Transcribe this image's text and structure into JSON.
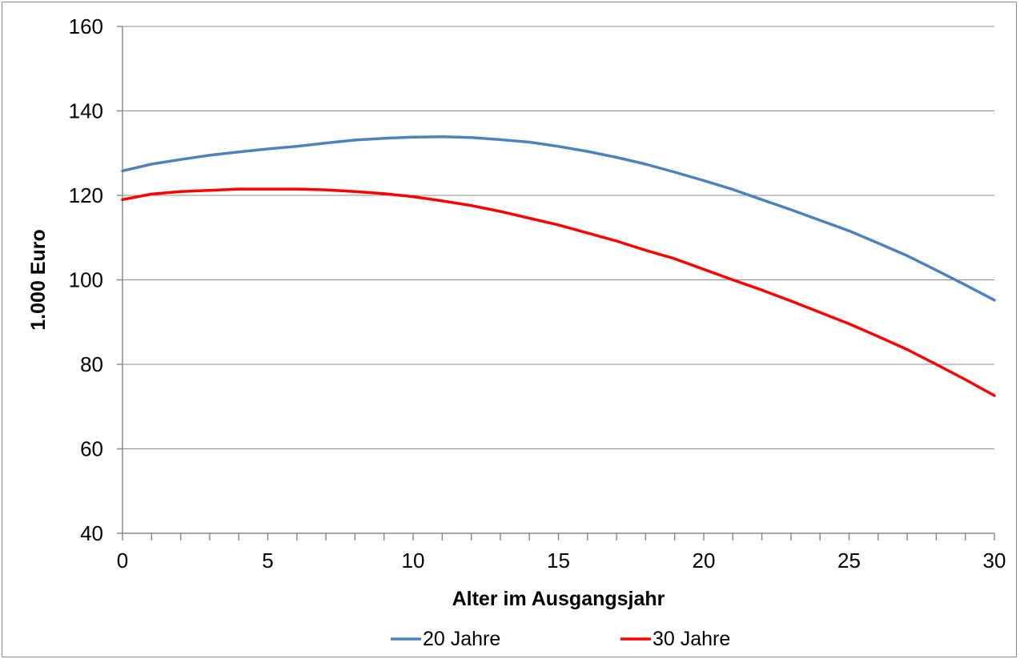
{
  "chart_data": {
    "type": "line",
    "title": "",
    "xlabel": "Alter im Ausgangsjahr",
    "ylabel": "1.000 Euro",
    "xlim": [
      0,
      30
    ],
    "ylim": [
      40,
      160
    ],
    "x_ticks": [
      0,
      5,
      10,
      15,
      20,
      25,
      30
    ],
    "y_ticks": [
      40,
      60,
      80,
      100,
      120,
      140,
      160
    ],
    "grid": "horizontal",
    "legend_position": "bottom",
    "x": [
      0,
      1,
      2,
      3,
      4,
      5,
      6,
      7,
      8,
      9,
      10,
      11,
      12,
      13,
      14,
      15,
      16,
      17,
      18,
      19,
      20,
      21,
      22,
      23,
      24,
      25,
      26,
      27,
      28,
      29,
      30
    ],
    "series": [
      {
        "name": "20 Jahre",
        "color": "#4f81bd",
        "values": [
          125.8,
          127.4,
          128.5,
          129.5,
          130.3,
          131.0,
          131.6,
          132.4,
          133.1,
          133.5,
          133.8,
          133.9,
          133.7,
          133.2,
          132.6,
          131.6,
          130.4,
          129.0,
          127.4,
          125.5,
          123.5,
          121.4,
          119.0,
          116.6,
          114.1,
          111.6,
          108.7,
          105.7,
          102.3,
          98.8,
          95.2
        ]
      },
      {
        "name": "30 Jahre",
        "color": "#ff0000",
        "values": [
          119.0,
          120.3,
          120.9,
          121.2,
          121.5,
          121.5,
          121.5,
          121.3,
          120.9,
          120.4,
          119.7,
          118.7,
          117.6,
          116.2,
          114.6,
          113.0,
          111.1,
          109.2,
          107.0,
          105.0,
          102.5,
          100.0,
          97.6,
          95.0,
          92.3,
          89.6,
          86.6,
          83.5,
          80.0,
          76.4,
          72.6
        ]
      }
    ]
  }
}
